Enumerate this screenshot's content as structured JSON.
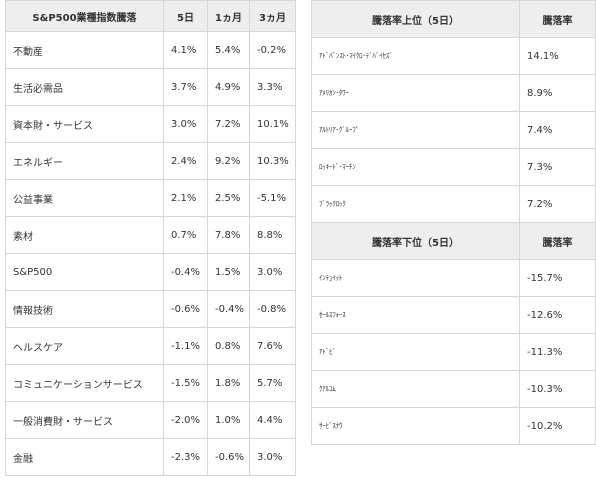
{
  "sector_table": {
    "headers": [
      "S&P500業種指数騰落",
      "5日",
      "1ヵ月",
      "3ヵ月"
    ],
    "rows": [
      {
        "name": "不動産",
        "d5": "4.1%",
        "m1": "5.4%",
        "m3": "-0.2%"
      },
      {
        "name": "生活必需品",
        "d5": "3.7%",
        "m1": "4.9%",
        "m3": "3.3%"
      },
      {
        "name": "資本財・サービス",
        "d5": "3.0%",
        "m1": "7.2%",
        "m3": "10.1%"
      },
      {
        "name": "エネルギー",
        "d5": "2.4%",
        "m1": "9.2%",
        "m3": "10.3%"
      },
      {
        "name": "公益事業",
        "d5": "2.1%",
        "m1": "2.5%",
        "m3": "-5.1%"
      },
      {
        "name": "素材",
        "d5": "0.7%",
        "m1": "7.8%",
        "m3": "8.8%"
      },
      {
        "name": "S&P500",
        "d5": "-0.4%",
        "m1": "1.5%",
        "m3": "3.0%"
      },
      {
        "name": "情報技術",
        "d5": "-0.6%",
        "m1": "-0.4%",
        "m3": "-0.8%"
      },
      {
        "name": "ヘルスケア",
        "d5": "-1.1%",
        "m1": "0.8%",
        "m3": "7.6%"
      },
      {
        "name": "コミュニケーションサービス",
        "d5": "-1.5%",
        "m1": "1.8%",
        "m3": "5.7%"
      },
      {
        "name": "一般消費財・サービス",
        "d5": "-2.0%",
        "m1": "1.0%",
        "m3": "4.4%"
      },
      {
        "name": "金融",
        "d5": "-2.3%",
        "m1": "-0.6%",
        "m3": "3.0%"
      }
    ]
  },
  "top_table": {
    "headers": [
      "騰落率上位（5日）",
      "騰落率"
    ],
    "rows": [
      {
        "name": "ｱﾄﾞﾊﾞﾝｽﾄ･ﾏｲｸﾛ･ﾃﾞﾊﾞｲｾｽﾞ",
        "value": "14.1%"
      },
      {
        "name": "ｱﾒﾘｶﾝ･ﾀﾜｰ",
        "value": "8.9%"
      },
      {
        "name": "ｱﾙﾄﾘｱ･ｸﾞﾙｰﾌﾟ",
        "value": "7.4%"
      },
      {
        "name": "ﾛｯｷｰﾄﾞ･ﾏｰﾁﾝ",
        "value": "7.3%"
      },
      {
        "name": "ﾌﾞﾗｯｸﾛｯｸ",
        "value": "7.2%"
      }
    ]
  },
  "bottom_table": {
    "headers": [
      "騰落率下位（5日）",
      "騰落率"
    ],
    "rows": [
      {
        "name": "ｲﾝﾃｭｲｯﾄ",
        "value": "-15.7%"
      },
      {
        "name": "ｾｰﾙｽﾌｫｰｽ",
        "value": "-12.6%"
      },
      {
        "name": "ｱﾄﾞﾋﾞ",
        "value": "-11.3%"
      },
      {
        "name": "ｸｱﾙｺﾑ",
        "value": "-10.3%"
      },
      {
        "name": "ｻｰﾋﾞｽﾅｳ",
        "value": "-10.2%"
      }
    ]
  }
}
